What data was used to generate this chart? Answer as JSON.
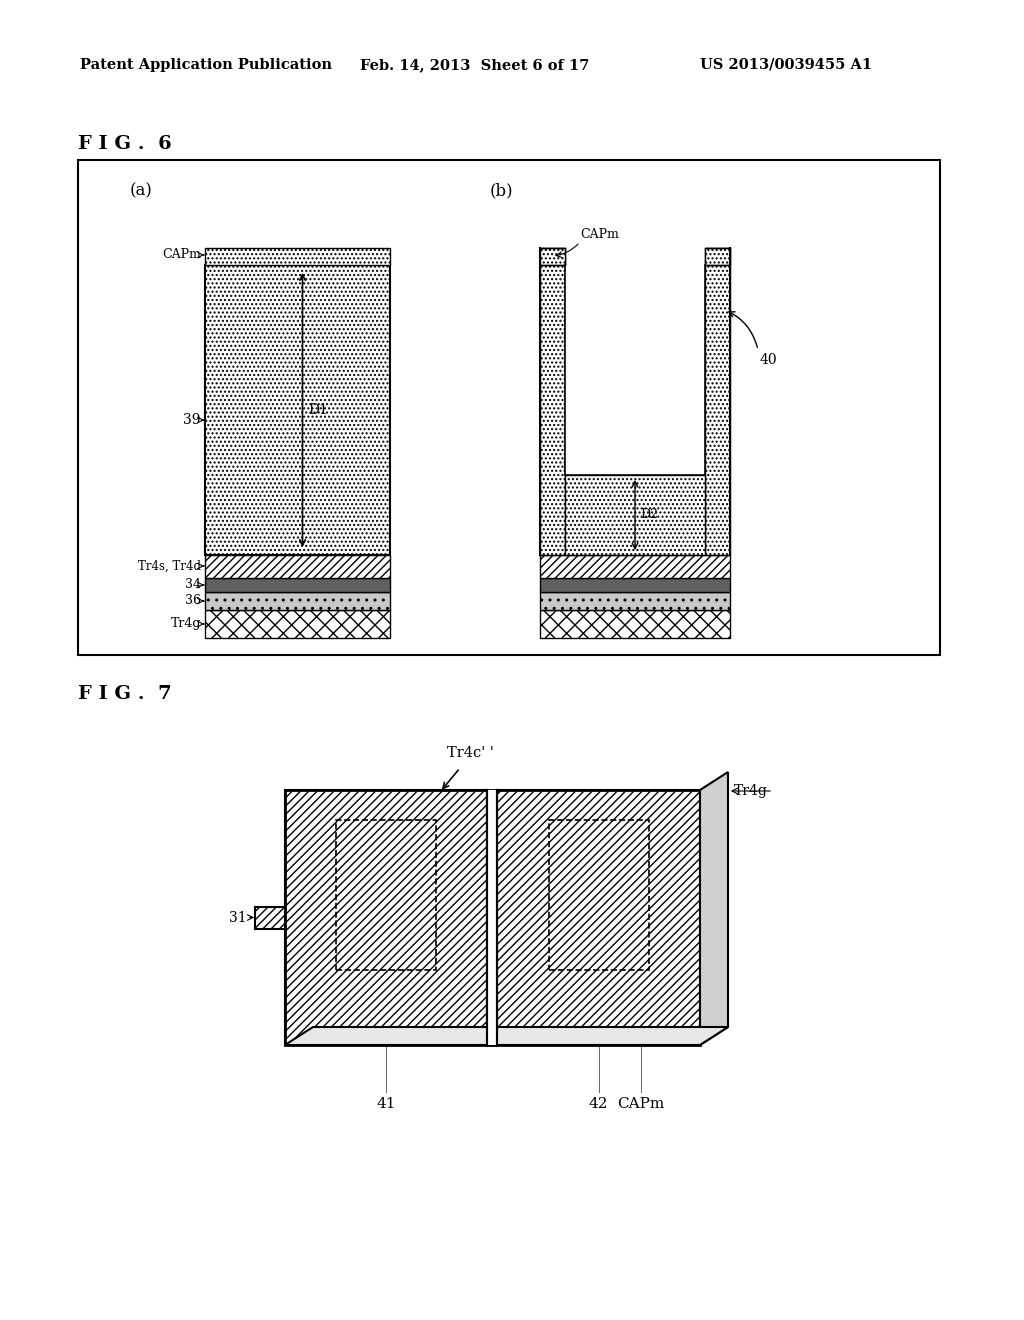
{
  "bg_color": "#ffffff",
  "header_left": "Patent Application Publication",
  "header_mid": "Feb. 14, 2013  Sheet 6 of 17",
  "header_right": "US 2013/0039455 A1"
}
